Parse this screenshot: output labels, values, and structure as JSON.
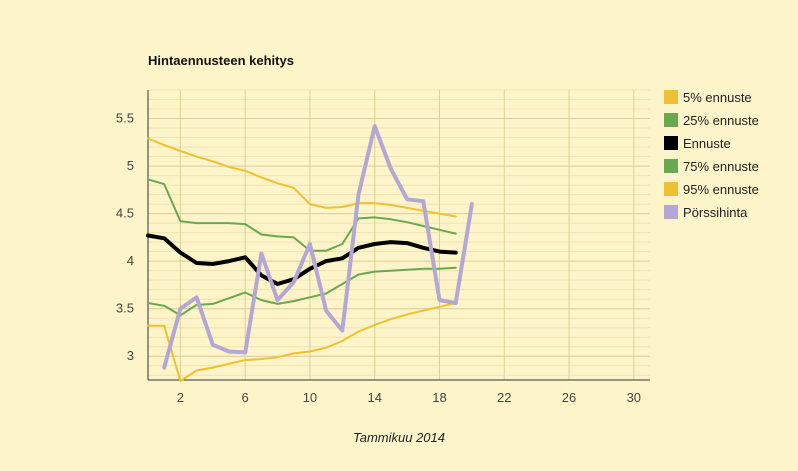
{
  "chart_data": {
    "type": "line",
    "title": "Hintaennusteen kehitys",
    "xlabel": "Tammikuu 2014",
    "ylabel": "",
    "xlim": [
      0,
      31
    ],
    "ylim": [
      2.75,
      5.8
    ],
    "x_ticks": [
      2,
      6,
      10,
      14,
      18,
      22,
      26,
      30
    ],
    "y_ticks": [
      3,
      3.5,
      4,
      4.5,
      5,
      5.5
    ],
    "grid": true,
    "legend_position": "right",
    "series": [
      {
        "name": "5% ennuste",
        "color": "#f0c030",
        "width": 2,
        "x": [
          0,
          1,
          2,
          3,
          4,
          5,
          6,
          7,
          8,
          9,
          10,
          11,
          12,
          13,
          14,
          15,
          16,
          17,
          18,
          19
        ],
        "y": [
          3.32,
          3.32,
          2.74,
          2.85,
          2.88,
          2.92,
          2.96,
          2.97,
          2.99,
          3.03,
          3.05,
          3.09,
          3.16,
          3.26,
          3.33,
          3.39,
          3.44,
          3.48,
          3.52,
          3.56
        ]
      },
      {
        "name": "25% ennuste",
        "color": "#6aa84f",
        "width": 2,
        "x": [
          0,
          1,
          2,
          3,
          4,
          5,
          6,
          7,
          8,
          9,
          10,
          11,
          12,
          13,
          14,
          15,
          16,
          17,
          18,
          19
        ],
        "y": [
          3.56,
          3.53,
          3.43,
          3.54,
          3.55,
          3.61,
          3.67,
          3.59,
          3.55,
          3.58,
          3.62,
          3.66,
          3.76,
          3.86,
          3.89,
          3.9,
          3.91,
          3.92,
          3.92,
          3.93
        ]
      },
      {
        "name": "Ennuste",
        "color": "#000000",
        "width": 4,
        "x": [
          0,
          1,
          2,
          3,
          4,
          5,
          6,
          7,
          8,
          9,
          10,
          11,
          12,
          13,
          14,
          15,
          16,
          17,
          18,
          19
        ],
        "y": [
          4.27,
          4.24,
          4.09,
          3.98,
          3.97,
          4.0,
          4.04,
          3.85,
          3.76,
          3.81,
          3.92,
          4.0,
          4.03,
          4.14,
          4.18,
          4.2,
          4.19,
          4.14,
          4.1,
          4.09
        ]
      },
      {
        "name": "75% ennuste",
        "color": "#6aa84f",
        "width": 2,
        "x": [
          0,
          1,
          2,
          3,
          4,
          5,
          6,
          7,
          8,
          9,
          10,
          11,
          12,
          13,
          14,
          15,
          16,
          17,
          18,
          19
        ],
        "y": [
          4.86,
          4.81,
          4.42,
          4.4,
          4.4,
          4.4,
          4.39,
          4.28,
          4.26,
          4.25,
          4.11,
          4.11,
          4.18,
          4.45,
          4.46,
          4.44,
          4.41,
          4.37,
          4.33,
          4.29
        ]
      },
      {
        "name": "95% ennuste",
        "color": "#f0c030",
        "width": 2,
        "x": [
          0,
          1,
          2,
          3,
          4,
          5,
          6,
          7,
          8,
          9,
          10,
          11,
          12,
          13,
          14,
          15,
          16,
          17,
          18,
          19
        ],
        "y": [
          5.29,
          5.22,
          5.16,
          5.1,
          5.05,
          4.99,
          4.95,
          4.88,
          4.82,
          4.77,
          4.6,
          4.56,
          4.57,
          4.61,
          4.61,
          4.59,
          4.56,
          4.53,
          4.5,
          4.47
        ]
      },
      {
        "name": "Pörssihinta",
        "color": "#b4a7d6",
        "width": 4,
        "x": [
          1,
          2,
          3,
          4,
          5,
          6,
          7,
          8,
          9,
          10,
          11,
          12,
          13,
          14,
          15,
          16,
          17,
          18,
          19,
          20
        ],
        "y": [
          2.88,
          3.5,
          3.62,
          3.12,
          3.05,
          3.04,
          4.08,
          3.59,
          3.78,
          4.18,
          3.48,
          3.27,
          4.7,
          5.42,
          4.97,
          4.65,
          4.63,
          3.59,
          3.56,
          4.6
        ]
      }
    ]
  }
}
